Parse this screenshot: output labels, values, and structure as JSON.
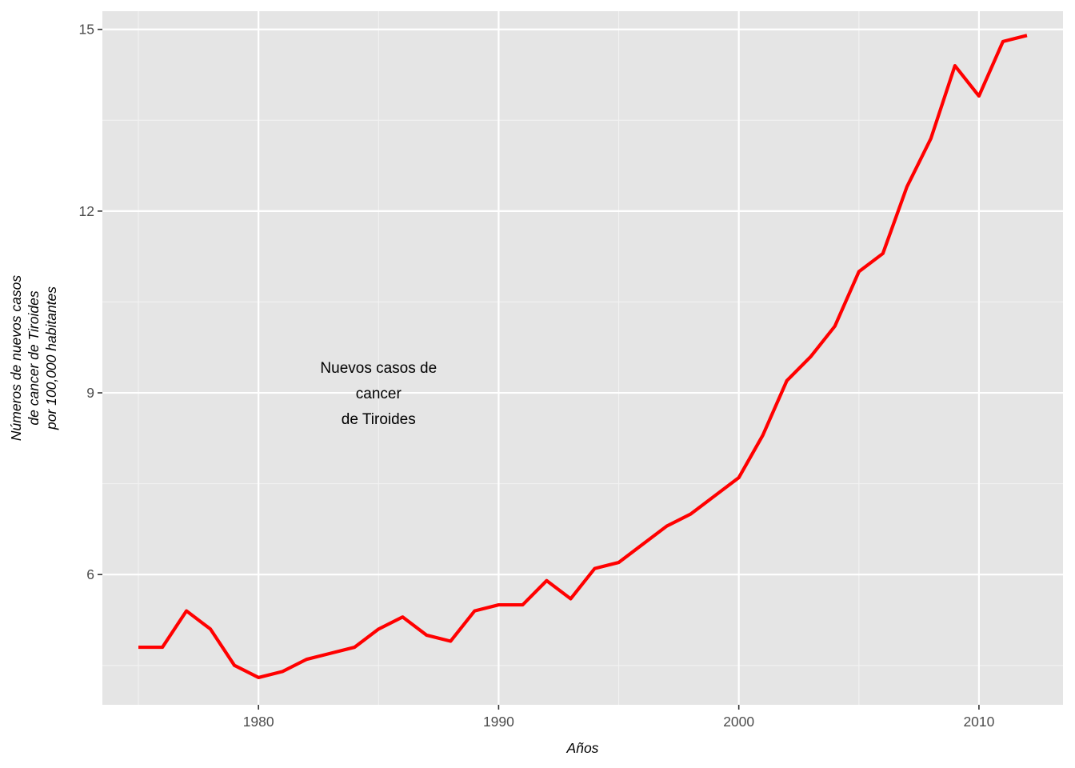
{
  "chart_data": {
    "type": "line",
    "title": "",
    "xlabel": "Años",
    "ylabel_lines": [
      "Números de nuevos casos",
      "de cancer de Tiroides",
      "por 100,000 habitantes"
    ],
    "xlim": [
      1973.5,
      2013.5
    ],
    "ylim": [
      3.85,
      15.3
    ],
    "x_ticks": [
      1980,
      1990,
      2000,
      2010
    ],
    "x_tick_labels": [
      "1980",
      "1990",
      "2000",
      "2010"
    ],
    "y_ticks": [
      6,
      9,
      12,
      15
    ],
    "y_tick_labels": [
      "6",
      "9",
      "12",
      "15"
    ],
    "grid": true,
    "legend": "none",
    "annotation": {
      "lines": [
        "Nuevos casos de",
        "cancer",
        "de Tiroides"
      ],
      "x": 1985,
      "y": 9
    },
    "series": [
      {
        "color": "#ff0000",
        "x": [
          1975,
          1976,
          1977,
          1978,
          1979,
          1980,
          1981,
          1982,
          1983,
          1984,
          1985,
          1986,
          1987,
          1988,
          1989,
          1990,
          1991,
          1992,
          1993,
          1994,
          1995,
          1996,
          1997,
          1998,
          1999,
          2000,
          2001,
          2002,
          2003,
          2004,
          2005,
          2006,
          2007,
          2008,
          2009,
          2010,
          2011,
          2012
        ],
        "y": [
          4.8,
          4.8,
          5.4,
          5.1,
          4.5,
          4.3,
          4.4,
          4.6,
          4.7,
          4.8,
          5.1,
          5.3,
          5.0,
          4.9,
          5.4,
          5.5,
          5.5,
          5.9,
          5.6,
          6.1,
          6.2,
          6.5,
          6.8,
          7.0,
          7.3,
          7.6,
          8.3,
          9.2,
          9.6,
          10.1,
          11.0,
          11.3,
          12.4,
          13.2,
          14.4,
          13.9,
          14.8,
          14.9
        ]
      }
    ],
    "colors": {
      "panel_background": "#e5e5e5",
      "grid_major": "#ffffff",
      "grid_minor": "#f2f2f2",
      "line": "#ff0000"
    }
  }
}
